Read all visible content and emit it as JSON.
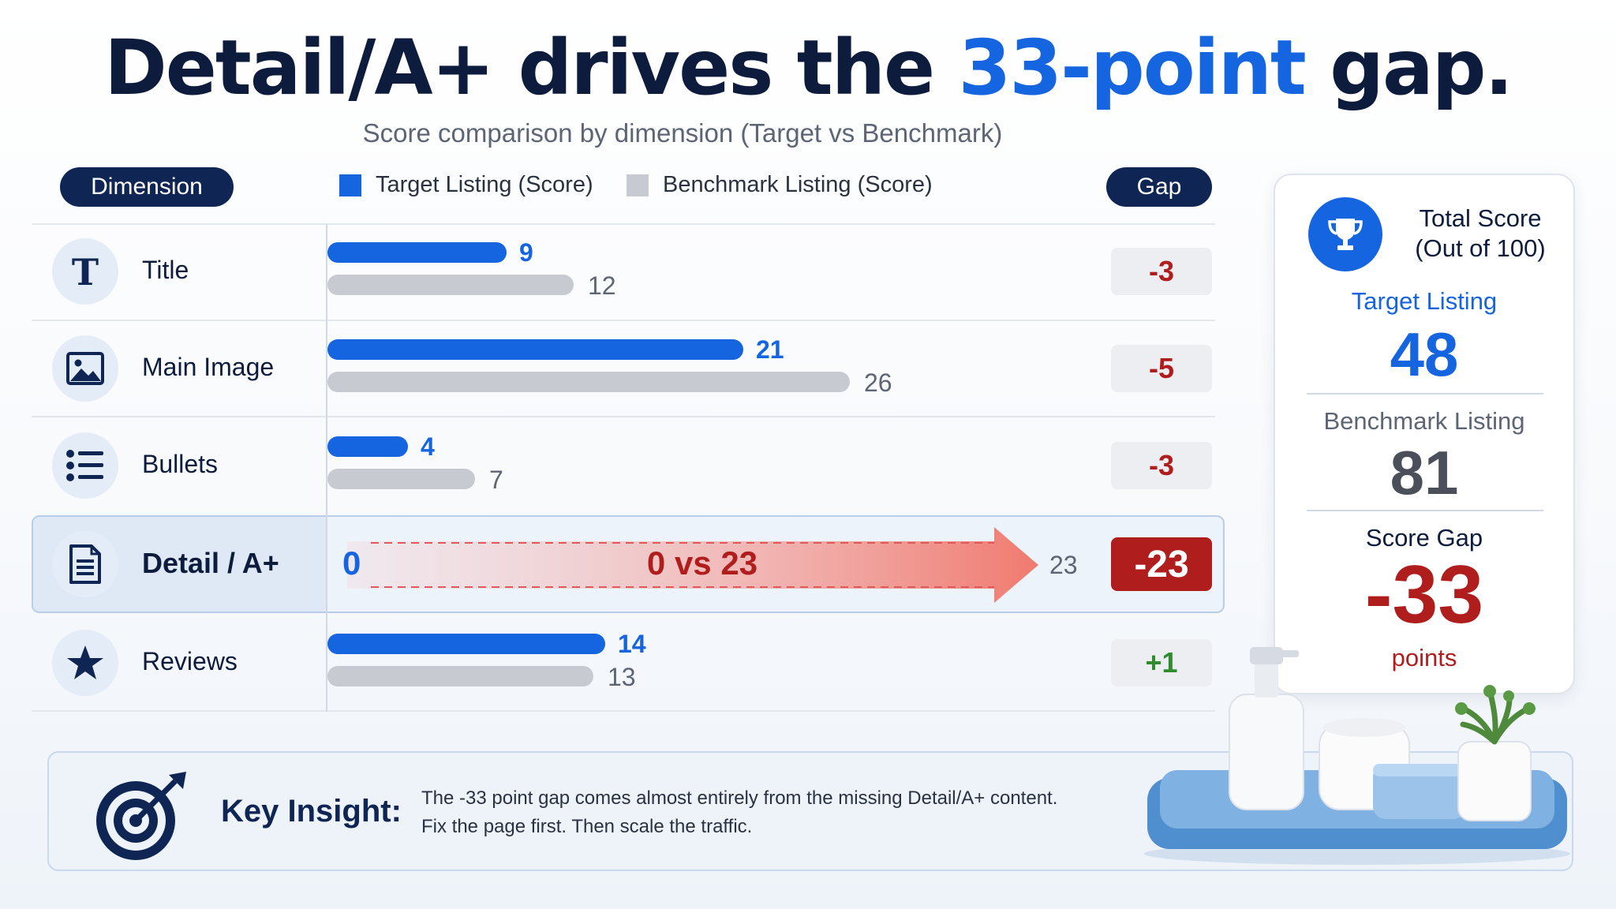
{
  "header": {
    "title_pre": "Detail/A+ drives the ",
    "title_accent": "33-point",
    "title_post": " gap.",
    "subtitle": "Score comparison by dimension (Target vs Benchmark)"
  },
  "columns": {
    "dimension": "Dimension",
    "gap": "Gap"
  },
  "colors": {
    "target": "#1565e0",
    "benchmark": "#c7cad1",
    "negative": "#b01d1d",
    "positive": "#2e8b2e",
    "navy": "#0f2654"
  },
  "chart_data": {
    "type": "bar",
    "orientation": "horizontal",
    "categories": [
      "Title",
      "Main Image",
      "Bullets",
      "Detail / A+",
      "Reviews"
    ],
    "series": [
      {
        "name": "Target Listing (Score)",
        "values": [
          9,
          21,
          4,
          0,
          14
        ]
      },
      {
        "name": "Benchmark Listing (Score)",
        "values": [
          12,
          26,
          7,
          23,
          13
        ]
      }
    ],
    "gaps": [
      "-3",
      "-5",
      "-3",
      "-23",
      "+1"
    ],
    "icons": [
      "title-t-icon",
      "image-icon",
      "list-icon",
      "document-icon",
      "star-icon"
    ],
    "xlim": [
      0,
      30
    ],
    "highlight": {
      "category": "Detail / A+",
      "left_label": "0",
      "center_label": "0 vs 23",
      "right_label": "23"
    },
    "legend_position": "top"
  },
  "summary": {
    "heading_line1": "Total Score",
    "heading_line2": "(Out of 100)",
    "target_label": "Target Listing",
    "target_value": "48",
    "benchmark_label": "Benchmark Listing",
    "benchmark_value": "81",
    "gap_label": "Score Gap",
    "gap_value": "-33",
    "gap_unit": "points"
  },
  "insight": {
    "label": "Key Insight:",
    "line1": "The -33 point gap comes almost entirely from the missing Detail/A+ content.",
    "line2": "Fix the page first. Then scale the traffic."
  }
}
